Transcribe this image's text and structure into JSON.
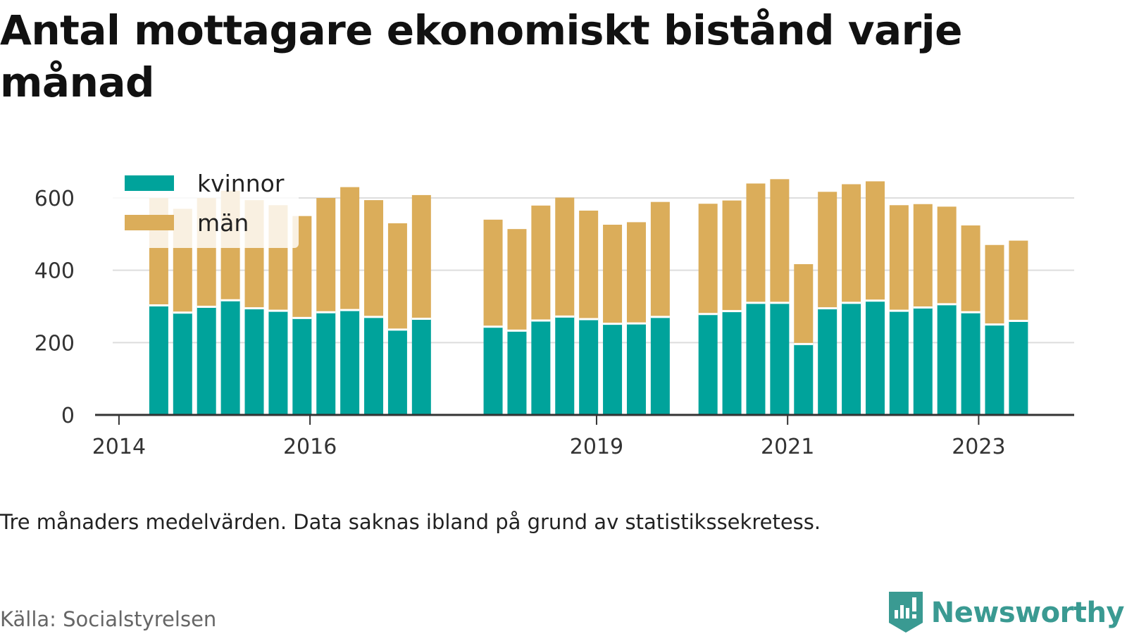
{
  "title": "Antal mottagare ekonomiskt bistånd varje månad",
  "note": "Tre månaders medelvärden. Data saknas ibland på grund av statistikssekretess.",
  "source": "Källa: Socialstyrelsen",
  "brand": {
    "name": "Newsworthy",
    "icon": "newsworthy-logo-icon",
    "color": "#3a9a92"
  },
  "chart_data": {
    "type": "bar",
    "stacked": true,
    "title": "Antal mottagare ekonomiskt bistånd varje månad",
    "xlabel": "",
    "ylabel": "",
    "ylim": [
      0,
      700
    ],
    "xlim": [
      "2013-10",
      "2024-01"
    ],
    "yticks": [
      0,
      200,
      400,
      600
    ],
    "xticks": [
      {
        "label": "2014",
        "x": "2014-01"
      },
      {
        "label": "2016",
        "x": "2016-01"
      },
      {
        "label": "2019",
        "x": "2019-01"
      },
      {
        "label": "2021",
        "x": "2021-01"
      },
      {
        "label": "2023",
        "x": "2023-01"
      }
    ],
    "grid": true,
    "legend": "top-left",
    "x": [
      "2014-06",
      "2014-09",
      "2014-12",
      "2015-03",
      "2015-06",
      "2015-09",
      "2015-12",
      "2016-03",
      "2016-06",
      "2016-09",
      "2016-12",
      "2017-03",
      "2017-12",
      "2018-03",
      "2018-06",
      "2018-09",
      "2018-12",
      "2019-03",
      "2019-06",
      "2019-09",
      "2020-03",
      "2020-06",
      "2020-09",
      "2020-12",
      "2021-03",
      "2021-06",
      "2021-09",
      "2021-12",
      "2022-03",
      "2022-06",
      "2022-09",
      "2022-12",
      "2023-03",
      "2023-06"
    ],
    "series": [
      {
        "name": "kvinnor",
        "color": "#00a39b",
        "values": [
          303,
          283,
          299,
          317,
          295,
          288,
          268,
          284,
          290,
          271,
          236,
          266,
          244,
          233,
          261,
          272,
          265,
          252,
          253,
          271,
          279,
          287,
          310,
          310,
          196,
          295,
          310,
          316,
          288,
          297,
          306,
          284,
          250,
          260
        ]
      },
      {
        "name": "män",
        "color": "#dbad5a",
        "values": [
          297,
          287,
          301,
          303,
          299,
          292,
          282,
          316,
          340,
          323,
          294,
          342,
          296,
          281,
          318,
          329,
          300,
          274,
          280,
          318,
          305,
          306,
          330,
          342,
          221,
          322,
          328,
          330,
          292,
          286,
          270,
          240,
          220,
          222
        ]
      }
    ]
  }
}
